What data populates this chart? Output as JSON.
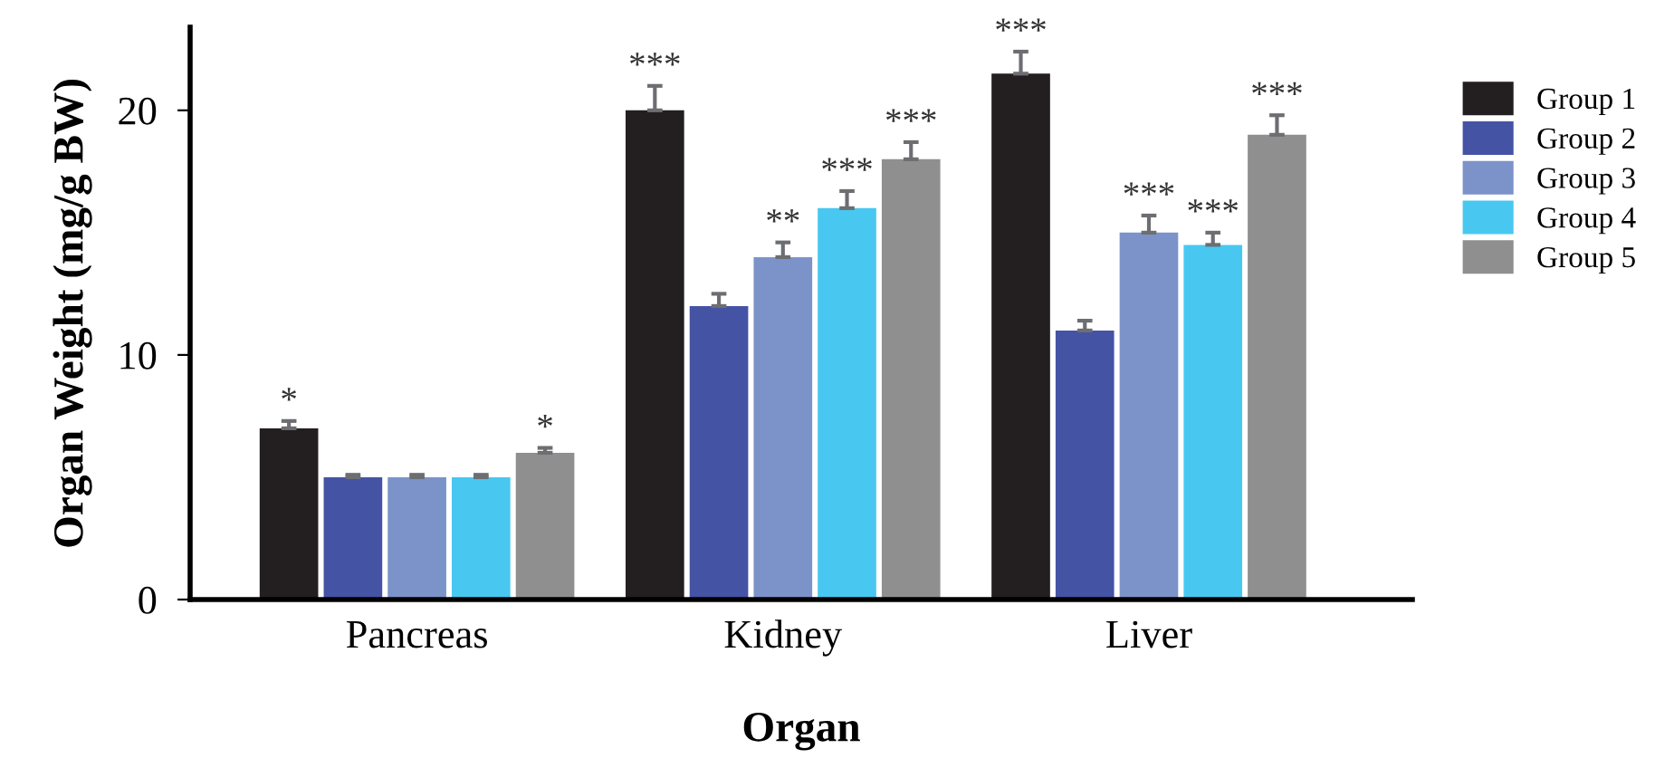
{
  "chart_data": {
    "type": "bar",
    "xlabel": "Organ",
    "ylabel": "Organ Weight (mg/g BW)",
    "categories": [
      "Pancreas",
      "Kidney",
      "Liver"
    ],
    "series": [
      {
        "name": "Group 1",
        "color": "#231f20",
        "values": [
          7,
          20,
          21.5
        ],
        "errors": [
          0.3,
          1.0,
          0.9
        ],
        "value_labels": [
          "*",
          "***",
          "***"
        ]
      },
      {
        "name": "Group 2",
        "color": "#4553a5",
        "values": [
          5,
          12,
          11
        ],
        "errors": [
          0.1,
          0.5,
          0.4
        ],
        "value_labels": [
          null,
          null,
          null
        ]
      },
      {
        "name": "Group 3",
        "color": "#7b93c9",
        "values": [
          5,
          14,
          15
        ],
        "errors": [
          0.1,
          0.6,
          0.7
        ],
        "value_labels": [
          null,
          "**",
          "***"
        ]
      },
      {
        "name": "Group 4",
        "color": "#48c8f0",
        "values": [
          5,
          16,
          14.5
        ],
        "errors": [
          0.1,
          0.7,
          0.5
        ],
        "value_labels": [
          null,
          "***",
          "***"
        ]
      },
      {
        "name": "Group 5",
        "color": "#8f8f8f",
        "values": [
          6,
          18,
          19
        ],
        "errors": [
          0.2,
          0.7,
          0.8
        ],
        "value_labels": [
          "*",
          "***",
          "***"
        ]
      }
    ],
    "ylim": [
      0,
      23.4
    ],
    "yticks": [
      0,
      10,
      20
    ],
    "grid": false,
    "legend": "right"
  }
}
